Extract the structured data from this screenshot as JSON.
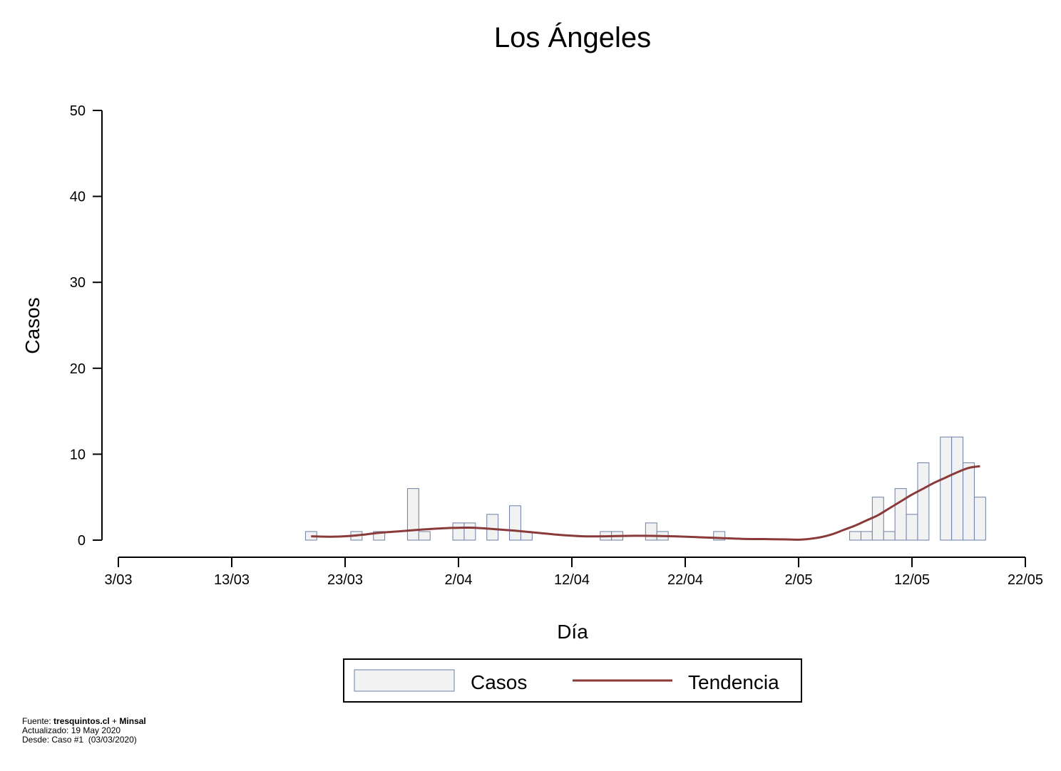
{
  "chart_data": {
    "type": "bar",
    "title": "Los Ángeles",
    "xlabel": "Día",
    "ylabel": "Casos",
    "ylim": [
      0,
      50
    ],
    "yticks": [
      0,
      10,
      20,
      30,
      40,
      50
    ],
    "xticks": [
      "3/03",
      "13/03",
      "23/03",
      "2/04",
      "12/04",
      "22/04",
      "2/05",
      "12/05",
      "22/05"
    ],
    "xlim_days": [
      0,
      80
    ],
    "x_days_since": "3/03",
    "grid": false,
    "legend_position": "bottom",
    "series": [
      {
        "name": "Casos",
        "type": "bar",
        "color": "#f2f2f2",
        "stroke": "#6b7fa6",
        "points": [
          {
            "day": 17,
            "value": 1
          },
          {
            "day": 21,
            "value": 1
          },
          {
            "day": 23,
            "value": 1
          },
          {
            "day": 26,
            "value": 6
          },
          {
            "day": 27,
            "value": 1
          },
          {
            "day": 30,
            "value": 2
          },
          {
            "day": 31,
            "value": 2
          },
          {
            "day": 33,
            "value": 3
          },
          {
            "day": 35,
            "value": 4
          },
          {
            "day": 36,
            "value": 1
          },
          {
            "day": 43,
            "value": 1
          },
          {
            "day": 44,
            "value": 1
          },
          {
            "day": 47,
            "value": 2
          },
          {
            "day": 48,
            "value": 1
          },
          {
            "day": 53,
            "value": 1
          },
          {
            "day": 65,
            "value": 1
          },
          {
            "day": 66,
            "value": 1
          },
          {
            "day": 67,
            "value": 5
          },
          {
            "day": 68,
            "value": 1
          },
          {
            "day": 69,
            "value": 6
          },
          {
            "day": 70,
            "value": 3
          },
          {
            "day": 71,
            "value": 9
          },
          {
            "day": 73,
            "value": 12
          },
          {
            "day": 74,
            "value": 12
          },
          {
            "day": 75,
            "value": 9
          },
          {
            "day": 76,
            "value": 5
          }
        ]
      },
      {
        "name": "Tendencia",
        "type": "line",
        "color": "#8b3a3a",
        "points": [
          {
            "day": 17,
            "value": 0.45
          },
          {
            "day": 19,
            "value": 0.4
          },
          {
            "day": 21,
            "value": 0.55
          },
          {
            "day": 23,
            "value": 0.85
          },
          {
            "day": 25,
            "value": 1.05
          },
          {
            "day": 27,
            "value": 1.25
          },
          {
            "day": 29,
            "value": 1.4
          },
          {
            "day": 31,
            "value": 1.45
          },
          {
            "day": 33,
            "value": 1.3
          },
          {
            "day": 35,
            "value": 1.1
          },
          {
            "day": 37,
            "value": 0.85
          },
          {
            "day": 39,
            "value": 0.6
          },
          {
            "day": 41,
            "value": 0.45
          },
          {
            "day": 43,
            "value": 0.45
          },
          {
            "day": 45,
            "value": 0.5
          },
          {
            "day": 47,
            "value": 0.5
          },
          {
            "day": 49,
            "value": 0.45
          },
          {
            "day": 51,
            "value": 0.35
          },
          {
            "day": 53,
            "value": 0.25
          },
          {
            "day": 55,
            "value": 0.15
          },
          {
            "day": 57,
            "value": 0.12
          },
          {
            "day": 59,
            "value": 0.08
          },
          {
            "day": 60,
            "value": 0.05
          },
          {
            "day": 61,
            "value": 0.15
          },
          {
            "day": 62,
            "value": 0.35
          },
          {
            "day": 63,
            "value": 0.7
          },
          {
            "day": 64,
            "value": 1.2
          },
          {
            "day": 65,
            "value": 1.7
          },
          {
            "day": 66,
            "value": 2.3
          },
          {
            "day": 67,
            "value": 2.9
          },
          {
            "day": 68,
            "value": 3.7
          },
          {
            "day": 69,
            "value": 4.5
          },
          {
            "day": 70,
            "value": 5.3
          },
          {
            "day": 71,
            "value": 6.0
          },
          {
            "day": 72,
            "value": 6.7
          },
          {
            "day": 73,
            "value": 7.3
          },
          {
            "day": 74,
            "value": 7.9
          },
          {
            "day": 75,
            "value": 8.4
          },
          {
            "day": 76,
            "value": 8.6
          }
        ]
      }
    ]
  },
  "footer": {
    "source_prefix": "Fuente: ",
    "source_site": "tresquintos.cl",
    "source_sep": " + ",
    "source_org": "Minsal",
    "updated": "Actualizado: 19 May 2020",
    "since": "Desde: Caso #1  (03/03/2020)"
  }
}
